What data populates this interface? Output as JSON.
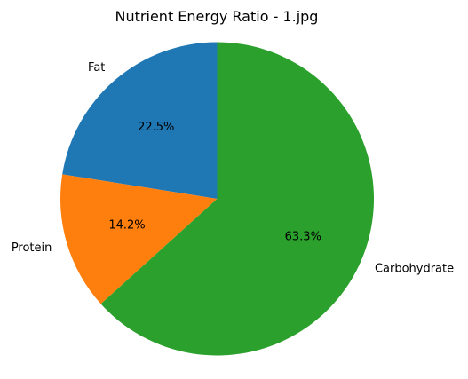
{
  "chart_data": {
    "type": "pie",
    "title": "Nutrient Energy Ratio - 1.jpg",
    "start_angle_deg": 90,
    "direction": "counterclockwise",
    "slices": [
      {
        "label": "Fat",
        "value": 22.5,
        "pct_label": "22.5%",
        "color": "#1f77b4"
      },
      {
        "label": "Protein",
        "value": 14.2,
        "pct_label": "14.2%",
        "color": "#ff7f0e"
      },
      {
        "label": "Carbohydrate",
        "value": 63.3,
        "pct_label": "63.3%",
        "color": "#2ca02c"
      }
    ],
    "legend": "none"
  }
}
